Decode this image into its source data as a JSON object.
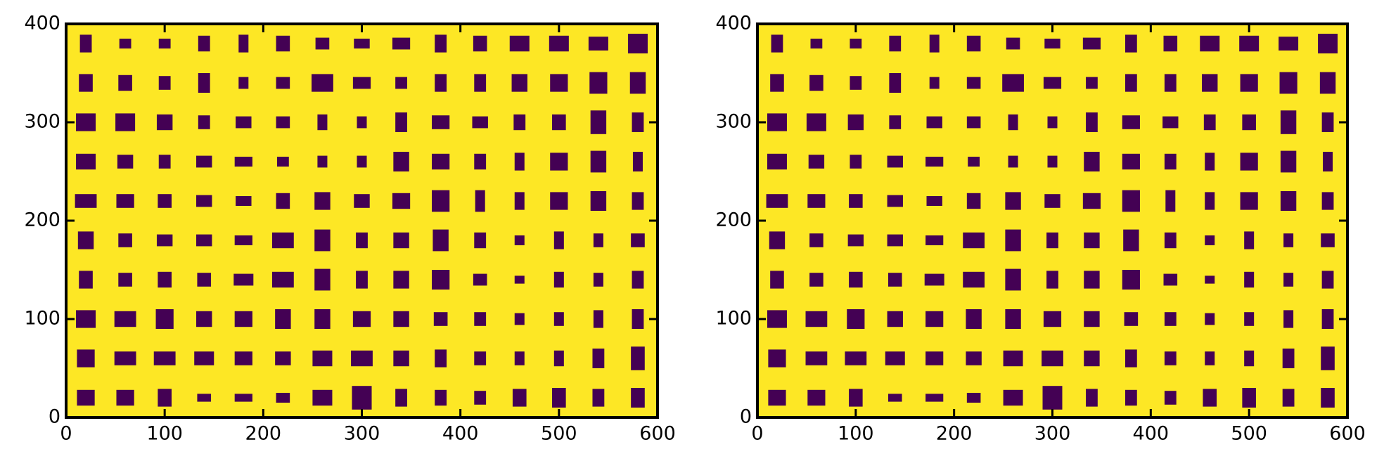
{
  "chart_data": [
    {
      "type": "image",
      "background": "#fde725",
      "color": "#440154",
      "xlim": [
        0,
        600
      ],
      "ylim": [
        0,
        400
      ],
      "xticks": [
        0,
        100,
        200,
        300,
        400,
        500,
        600
      ],
      "yticks": [
        0,
        100,
        200,
        300,
        400
      ],
      "x_centers": [
        20,
        60,
        100,
        140,
        180,
        220,
        260,
        300,
        340,
        380,
        420,
        460,
        500,
        540,
        580
      ],
      "y_centers": [
        380,
        340,
        300,
        260,
        220,
        180,
        140,
        100,
        60,
        20
      ],
      "widths": [
        [
          12,
          12,
          12,
          12,
          10,
          14,
          14,
          16,
          18,
          12,
          14,
          20,
          20,
          20,
          20
        ],
        [
          14,
          14,
          12,
          12,
          10,
          14,
          22,
          18,
          12,
          12,
          12,
          16,
          18,
          18,
          16
        ],
        [
          20,
          20,
          16,
          12,
          16,
          14,
          10,
          10,
          12,
          18,
          16,
          12,
          14,
          16,
          12
        ],
        [
          20,
          16,
          12,
          16,
          18,
          12,
          10,
          10,
          16,
          18,
          12,
          10,
          18,
          16,
          10
        ],
        [
          22,
          18,
          14,
          16,
          16,
          14,
          16,
          16,
          18,
          18,
          10,
          10,
          18,
          16,
          12
        ],
        [
          16,
          14,
          16,
          16,
          18,
          22,
          16,
          12,
          16,
          16,
          12,
          10,
          10,
          10,
          14
        ],
        [
          14,
          14,
          14,
          14,
          20,
          22,
          16,
          12,
          16,
          18,
          14,
          10,
          10,
          10,
          12
        ],
        [
          20,
          22,
          18,
          16,
          18,
          16,
          16,
          18,
          16,
          14,
          12,
          10,
          10,
          10,
          12
        ],
        [
          18,
          22,
          22,
          20,
          18,
          16,
          20,
          22,
          16,
          12,
          12,
          10,
          10,
          12,
          14
        ],
        [
          18,
          18,
          14,
          14,
          18,
          14,
          20,
          20,
          12,
          12,
          12,
          14,
          14,
          12,
          14
        ]
      ],
      "heights": [
        [
          18,
          10,
          10,
          16,
          18,
          16,
          12,
          10,
          12,
          18,
          16,
          16,
          16,
          14,
          20
        ],
        [
          18,
          16,
          14,
          20,
          12,
          12,
          18,
          12,
          12,
          18,
          18,
          18,
          18,
          22,
          22
        ],
        [
          18,
          18,
          16,
          14,
          12,
          12,
          16,
          12,
          20,
          14,
          12,
          16,
          16,
          24,
          20
        ],
        [
          16,
          14,
          14,
          12,
          10,
          10,
          12,
          12,
          20,
          16,
          16,
          18,
          18,
          22,
          20
        ],
        [
          14,
          14,
          14,
          12,
          10,
          16,
          18,
          14,
          16,
          22,
          22,
          18,
          18,
          20,
          18
        ],
        [
          18,
          14,
          12,
          12,
          10,
          16,
          22,
          16,
          16,
          22,
          16,
          10,
          18,
          14,
          14
        ],
        [
          18,
          14,
          16,
          14,
          12,
          16,
          22,
          18,
          18,
          20,
          12,
          8,
          16,
          14,
          18
        ],
        [
          18,
          16,
          20,
          16,
          16,
          20,
          20,
          16,
          16,
          14,
          14,
          12,
          14,
          18,
          20
        ],
        [
          18,
          14,
          14,
          14,
          14,
          14,
          16,
          16,
          16,
          18,
          14,
          14,
          16,
          20,
          24
        ],
        [
          16,
          16,
          18,
          8,
          8,
          10,
          16,
          24,
          18,
          16,
          14,
          18,
          20,
          18,
          20
        ]
      ]
    },
    {
      "type": "image",
      "background": "#fde725",
      "color": "#440154",
      "xlim": [
        0,
        600
      ],
      "ylim": [
        0,
        400
      ],
      "xticks": [
        0,
        100,
        200,
        300,
        400,
        500,
        600
      ],
      "yticks": [
        0,
        100,
        200,
        300,
        400
      ],
      "x_centers": [
        20,
        60,
        100,
        140,
        180,
        220,
        260,
        300,
        340,
        380,
        420,
        460,
        500,
        540,
        580
      ],
      "y_centers": [
        380,
        340,
        300,
        260,
        220,
        180,
        140,
        100,
        60,
        20
      ],
      "widths": [
        [
          12,
          12,
          12,
          12,
          10,
          14,
          14,
          16,
          18,
          12,
          14,
          20,
          20,
          20,
          20
        ],
        [
          14,
          14,
          12,
          12,
          10,
          14,
          22,
          18,
          12,
          12,
          12,
          16,
          18,
          18,
          16
        ],
        [
          20,
          20,
          16,
          12,
          16,
          14,
          10,
          10,
          12,
          18,
          16,
          12,
          14,
          16,
          12
        ],
        [
          20,
          16,
          12,
          16,
          18,
          12,
          10,
          10,
          16,
          18,
          12,
          10,
          18,
          16,
          10
        ],
        [
          22,
          18,
          14,
          16,
          16,
          14,
          16,
          16,
          18,
          18,
          10,
          10,
          18,
          16,
          12
        ],
        [
          16,
          14,
          16,
          16,
          18,
          22,
          16,
          12,
          16,
          16,
          12,
          10,
          10,
          10,
          14
        ],
        [
          14,
          14,
          14,
          14,
          20,
          22,
          16,
          12,
          16,
          18,
          14,
          10,
          10,
          10,
          12
        ],
        [
          20,
          22,
          18,
          16,
          18,
          16,
          16,
          18,
          16,
          14,
          12,
          10,
          10,
          10,
          12
        ],
        [
          18,
          22,
          22,
          20,
          18,
          16,
          20,
          22,
          16,
          12,
          12,
          10,
          10,
          12,
          14
        ],
        [
          18,
          18,
          14,
          14,
          18,
          14,
          20,
          20,
          12,
          12,
          12,
          14,
          14,
          12,
          14
        ]
      ],
      "heights": [
        [
          18,
          10,
          10,
          16,
          18,
          16,
          12,
          10,
          12,
          18,
          16,
          16,
          16,
          14,
          20
        ],
        [
          18,
          16,
          14,
          20,
          12,
          12,
          18,
          12,
          12,
          18,
          18,
          18,
          18,
          22,
          22
        ],
        [
          18,
          18,
          16,
          14,
          12,
          12,
          16,
          12,
          20,
          14,
          12,
          16,
          16,
          24,
          20
        ],
        [
          16,
          14,
          14,
          12,
          10,
          10,
          12,
          12,
          20,
          16,
          16,
          18,
          18,
          22,
          20
        ],
        [
          14,
          14,
          14,
          12,
          10,
          16,
          18,
          14,
          16,
          22,
          22,
          18,
          18,
          20,
          18
        ],
        [
          18,
          14,
          12,
          12,
          10,
          16,
          22,
          16,
          16,
          22,
          16,
          10,
          18,
          14,
          14
        ],
        [
          18,
          14,
          16,
          14,
          12,
          16,
          22,
          18,
          18,
          20,
          12,
          8,
          16,
          14,
          18
        ],
        [
          18,
          16,
          20,
          16,
          16,
          20,
          20,
          16,
          16,
          14,
          14,
          12,
          14,
          18,
          20
        ],
        [
          18,
          14,
          14,
          14,
          14,
          14,
          16,
          16,
          16,
          18,
          14,
          14,
          16,
          20,
          24
        ],
        [
          16,
          16,
          18,
          8,
          8,
          10,
          16,
          24,
          18,
          16,
          14,
          18,
          20,
          18,
          20
        ]
      ]
    }
  ]
}
